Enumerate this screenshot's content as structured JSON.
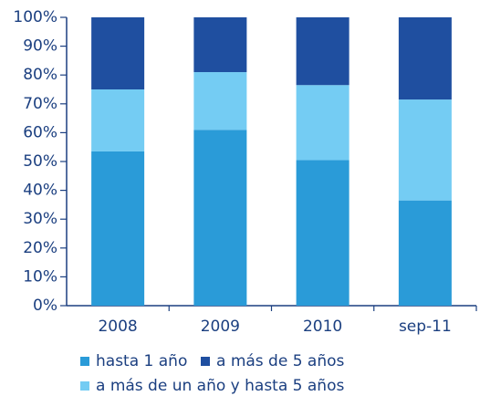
{
  "chart_data": {
    "type": "stacked_bar",
    "categories": [
      "2008",
      "2009",
      "2010",
      "sep-11"
    ],
    "series": [
      {
        "name": "hasta  1 año",
        "color": "#2a9bd8",
        "values": [
          53.5,
          61,
          50.5,
          36.5
        ]
      },
      {
        "name": "a más de un año y hasta 5 años",
        "color": "#74ccf3",
        "values": [
          21.5,
          20,
          26,
          35
        ]
      },
      {
        "name": "a más de 5 años",
        "color": "#1f4fa0",
        "values": [
          25,
          19,
          23.5,
          28.5
        ]
      }
    ],
    "ylim": [
      0,
      100
    ],
    "yticks": [
      {
        "value": 0,
        "label": "0%"
      },
      {
        "value": 10,
        "label": "10%"
      },
      {
        "value": 20,
        "label": "20%"
      },
      {
        "value": 30,
        "label": "30%"
      },
      {
        "value": 40,
        "label": "40%"
      },
      {
        "value": 50,
        "label": "50%"
      },
      {
        "value": 60,
        "label": "60%"
      },
      {
        "value": 70,
        "label": "70%"
      },
      {
        "value": 80,
        "label": "80%"
      },
      {
        "value": 90,
        "label": "90%"
      },
      {
        "value": 100,
        "label": "100%"
      }
    ]
  }
}
